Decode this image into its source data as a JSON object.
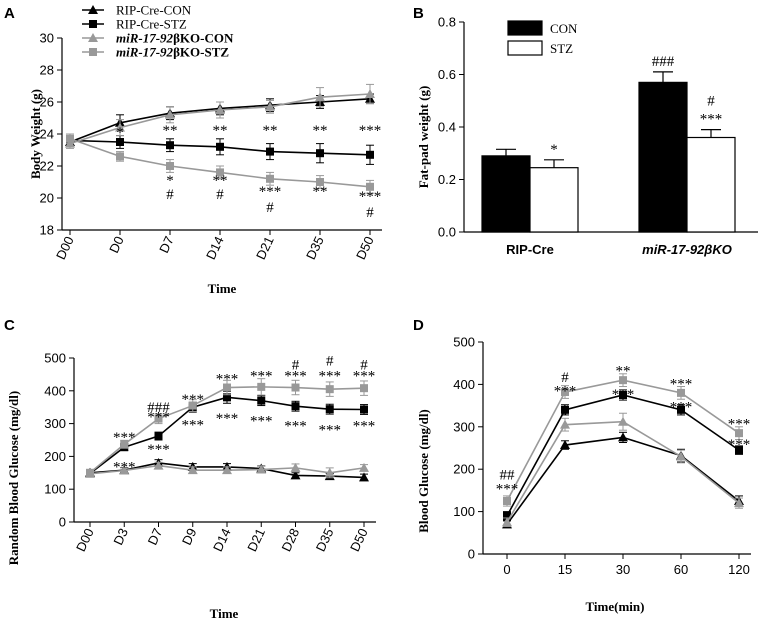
{
  "panel_labels": {
    "A": "A",
    "B": "B",
    "C": "C",
    "D": "D"
  },
  "chart_data": [
    {
      "id": "A",
      "type": "line",
      "ylabel": "Body Weight (g)",
      "xlabel": "Time",
      "categories": [
        "D00",
        "D0",
        "D7",
        "D14",
        "D21",
        "D35",
        "D50"
      ],
      "ylim": [
        18,
        30
      ],
      "yticks": [
        18,
        20,
        22,
        24,
        26,
        28,
        30
      ],
      "legend": {
        "placement": "top-left"
      },
      "series": [
        {
          "name": "RIP-Cre-CON",
          "color": "#000000",
          "marker": "triangle",
          "italic": false,
          "values": [
            23.5,
            24.7,
            25.3,
            25.6,
            25.8,
            26.0,
            26.2
          ],
          "errors": [
            0.3,
            0.5,
            0.4,
            0.4,
            0.4,
            0.4,
            0.3
          ]
        },
        {
          "name": "RIP-Cre-STZ",
          "color": "#000000",
          "marker": "square",
          "italic": false,
          "values": [
            23.6,
            23.5,
            23.3,
            23.2,
            22.9,
            22.8,
            22.7
          ],
          "errors": [
            0.3,
            0.4,
            0.4,
            0.5,
            0.5,
            0.6,
            0.6
          ]
        },
        {
          "name_italic": "miR-17-92",
          "name_rest": "βKO-CON",
          "name": "miR-17-92βKO-CON",
          "color": "#999999",
          "marker": "triangle",
          "italic": true,
          "values": [
            23.4,
            24.4,
            25.2,
            25.5,
            25.7,
            26.3,
            26.5
          ],
          "errors": [
            0.3,
            0.5,
            0.5,
            0.5,
            0.4,
            0.6,
            0.6
          ]
        },
        {
          "name_italic": "miR-17-92",
          "name_rest": "βKO-STZ",
          "name": "miR-17-92βKO-STZ",
          "color": "#999999",
          "marker": "square",
          "italic": true,
          "values": [
            23.7,
            22.6,
            22.0,
            21.6,
            21.2,
            21.0,
            20.7
          ],
          "errors": [
            0.3,
            0.3,
            0.4,
            0.4,
            0.4,
            0.4,
            0.4
          ]
        }
      ],
      "annotations": [
        {
          "cat": 1,
          "y": 24.2,
          "text": "*"
        },
        {
          "cat": 2,
          "y": 24.3,
          "text": "**"
        },
        {
          "cat": 3,
          "y": 24.3,
          "text": "**"
        },
        {
          "cat": 4,
          "y": 24.3,
          "text": "**"
        },
        {
          "cat": 5,
          "y": 24.3,
          "text": "**"
        },
        {
          "cat": 6,
          "y": 24.3,
          "text": "***"
        },
        {
          "cat": 2,
          "y": 21.2,
          "text": "*"
        },
        {
          "cat": 2,
          "y": 20.3,
          "text": "#"
        },
        {
          "cat": 3,
          "y": 21.2,
          "text": "**"
        },
        {
          "cat": 3,
          "y": 20.3,
          "text": "#"
        },
        {
          "cat": 4,
          "y": 20.5,
          "text": "***"
        },
        {
          "cat": 4,
          "y": 19.5,
          "text": "#"
        },
        {
          "cat": 5,
          "y": 20.5,
          "text": "**"
        },
        {
          "cat": 6,
          "y": 20.2,
          "text": "***"
        },
        {
          "cat": 6,
          "y": 19.2,
          "text": "#"
        }
      ]
    },
    {
      "id": "B",
      "type": "bar",
      "ylabel": "Fat-pad weight (g)",
      "xlabel": "",
      "categories": [
        "RIP-Cre",
        "miR-17-92βKO"
      ],
      "category_italic": [
        false,
        true
      ],
      "ylim": [
        0,
        0.8
      ],
      "yticks": [
        "0.0",
        "0.2",
        "0.4",
        "0.6",
        "0.8"
      ],
      "legend": {
        "placement": "top-left"
      },
      "series": [
        {
          "name": "CON",
          "fill": "#000000",
          "values": [
            0.29,
            0.57
          ],
          "errors": [
            0.025,
            0.04
          ]
        },
        {
          "name": "STZ",
          "fill": "#ffffff",
          "values": [
            0.245,
            0.36
          ],
          "errors": [
            0.03,
            0.03
          ]
        }
      ],
      "annotations": [
        {
          "cat": 0,
          "series": 1,
          "lines": [
            "*"
          ]
        },
        {
          "cat": 1,
          "series": 0,
          "lines": [
            "###"
          ]
        },
        {
          "cat": 1,
          "series": 1,
          "lines": [
            "#",
            "***"
          ]
        }
      ]
    },
    {
      "id": "C",
      "type": "line",
      "ylabel": "Random Blood Glucose (mg/dl)",
      "xlabel": "Time",
      "categories": [
        "D00",
        "D3",
        "D7",
        "D9",
        "D14",
        "D21",
        "D28",
        "D35",
        "D50"
      ],
      "ylim": [
        0,
        500
      ],
      "yticks": [
        0,
        100,
        200,
        300,
        400,
        500
      ],
      "series": [
        {
          "name": "RIP-Cre-CON",
          "color": "#000000",
          "marker": "triangle",
          "values": [
            150,
            158,
            180,
            168,
            168,
            163,
            142,
            140,
            136
          ],
          "errors": [
            8,
            8,
            10,
            10,
            10,
            8,
            8,
            8,
            10
          ]
        },
        {
          "name": "RIP-Cre-STZ",
          "color": "#000000",
          "marker": "square",
          "values": [
            148,
            228,
            262,
            350,
            380,
            370,
            353,
            344,
            343
          ],
          "errors": [
            8,
            10,
            12,
            15,
            18,
            15,
            15,
            15,
            15
          ]
        },
        {
          "name": "miR-17-92βKO-CON",
          "color": "#999999",
          "marker": "triangle",
          "values": [
            147,
            157,
            172,
            158,
            158,
            160,
            165,
            150,
            165
          ],
          "errors": [
            8,
            8,
            10,
            10,
            10,
            10,
            12,
            15,
            10
          ]
        },
        {
          "name": "miR-17-92βKO-STZ",
          "color": "#999999",
          "marker": "square",
          "values": [
            150,
            237,
            315,
            355,
            410,
            412,
            410,
            405,
            408
          ],
          "errors": [
            8,
            12,
            15,
            18,
            22,
            25,
            22,
            22,
            22
          ]
        }
      ],
      "annotations": [
        {
          "cat": 1,
          "y": 262,
          "text": "***"
        },
        {
          "cat": 1,
          "y": 172,
          "text": "***"
        },
        {
          "cat": 2,
          "y": 354,
          "text": "###"
        },
        {
          "cat": 2,
          "y": 325,
          "text": "***"
        },
        {
          "cat": 2,
          "y": 225,
          "text": "***"
        },
        {
          "cat": 3,
          "y": 378,
          "text": "***"
        },
        {
          "cat": 3,
          "y": 300,
          "text": "***"
        },
        {
          "cat": 4,
          "y": 440,
          "text": "***"
        },
        {
          "cat": 4,
          "y": 320,
          "text": "***"
        },
        {
          "cat": 5,
          "y": 450,
          "text": "***"
        },
        {
          "cat": 5,
          "y": 313,
          "text": "***"
        },
        {
          "cat": 6,
          "y": 483,
          "text": "#"
        },
        {
          "cat": 6,
          "y": 450,
          "text": "***"
        },
        {
          "cat": 6,
          "y": 298,
          "text": "***"
        },
        {
          "cat": 7,
          "y": 496,
          "text": "#"
        },
        {
          "cat": 7,
          "y": 450,
          "text": "***"
        },
        {
          "cat": 7,
          "y": 285,
          "text": "***"
        },
        {
          "cat": 8,
          "y": 483,
          "text": "#"
        },
        {
          "cat": 8,
          "y": 450,
          "text": "***"
        },
        {
          "cat": 8,
          "y": 298,
          "text": "***"
        }
      ]
    },
    {
      "id": "D",
      "type": "line",
      "ylabel": "Blood Glucose (mg/dl)",
      "xlabel": "Time(min)",
      "categories": [
        "0",
        "15",
        "30",
        "60",
        "120"
      ],
      "ylim": [
        0,
        500
      ],
      "yticks": [
        0,
        100,
        200,
        300,
        400,
        500
      ],
      "series": [
        {
          "name": "RIP-Cre-CON",
          "color": "#000000",
          "marker": "triangle",
          "values": [
            70,
            257,
            275,
            232,
            125
          ],
          "errors": [
            8,
            10,
            12,
            15,
            12
          ]
        },
        {
          "name": "RIP-Cre-STZ",
          "color": "#000000",
          "marker": "square",
          "values": [
            90,
            340,
            375,
            340,
            245
          ],
          "errors": [
            10,
            12,
            12,
            12,
            10
          ]
        },
        {
          "name": "miR-17-92βKO-CON",
          "color": "#999999",
          "marker": "triangle",
          "values": [
            75,
            305,
            312,
            230,
            120
          ],
          "errors": [
            10,
            15,
            20,
            15,
            12
          ]
        },
        {
          "name": "miR-17-92βKO-STZ",
          "color": "#999999",
          "marker": "square",
          "values": [
            125,
            382,
            410,
            380,
            285
          ],
          "errors": [
            12,
            15,
            15,
            15,
            15
          ]
        }
      ],
      "annotations": [
        {
          "cat": 0,
          "y": 190,
          "text": "##"
        },
        {
          "cat": 0,
          "y": 157,
          "text": "***"
        },
        {
          "cat": 1,
          "y": 420,
          "text": "#"
        },
        {
          "cat": 1,
          "y": 388,
          "text": "***"
        },
        {
          "cat": 1,
          "y": 342,
          "text": "#"
        },
        {
          "cat": 2,
          "y": 435,
          "text": "**"
        },
        {
          "cat": 2,
          "y": 380,
          "text": "***"
        },
        {
          "cat": 3,
          "y": 405,
          "text": "***"
        },
        {
          "cat": 3,
          "y": 350,
          "text": "***"
        },
        {
          "cat": 4,
          "y": 310,
          "text": "***"
        },
        {
          "cat": 4,
          "y": 262,
          "text": "***"
        }
      ]
    }
  ]
}
